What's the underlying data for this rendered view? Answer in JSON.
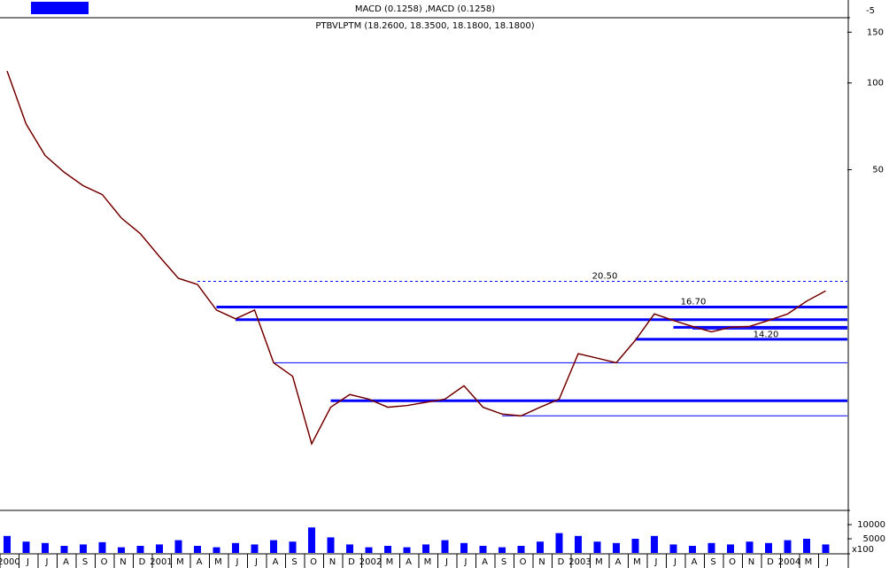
{
  "chart_data": {
    "type": "line",
    "title": "PTBVLPTM (18.2600, 18.3500, 18.1800, 18.1800)",
    "indicator_title": "MACD (0.1258) ,MACD (0.1258)",
    "indicator_ticks": [
      -5
    ],
    "categories": [
      "2000",
      "J",
      "J",
      "A",
      "S",
      "O",
      "N",
      "D",
      "2001",
      "M",
      "A",
      "M",
      "J",
      "J",
      "A",
      "S",
      "O",
      "N",
      "D",
      "2002",
      "M",
      "A",
      "M",
      "J",
      "J",
      "A",
      "S",
      "O",
      "N",
      "D",
      "2003",
      "M",
      "A",
      "M",
      "J",
      "J",
      "A",
      "S",
      "O",
      "N",
      "D",
      "2004",
      "M",
      "J"
    ],
    "log_scale": true,
    "ylim": [
      3.36,
      166
    ],
    "yticks": [
      50,
      100,
      150
    ],
    "series": [
      {
        "name": "PTBVLPTM",
        "color": "#000000",
        "values": [
          110,
          72,
          56,
          49,
          44,
          41,
          34,
          30,
          25,
          21,
          20,
          16.3,
          15.2,
          16.3,
          10.7,
          9.6,
          5.6,
          7.5,
          8.3,
          8.0,
          7.5,
          7.6,
          7.8,
          8.0,
          8.9,
          7.5,
          7.1,
          7.0,
          7.5,
          8.0,
          11.5,
          11.1,
          10.7,
          12.8,
          15.8,
          15.0,
          14.3,
          13.7,
          14.2,
          14.3,
          15.0,
          15.8,
          17.5,
          19.0
        ]
      }
    ],
    "levels": [
      {
        "value": 20.5,
        "label": "20.50"
      },
      {
        "value": 16.7,
        "label": "16.70"
      },
      {
        "value": 14.2,
        "label": "14.20"
      }
    ],
    "support_lines": [
      15.1,
      14.0,
      12.9,
      10.7,
      7.9,
      7.0
    ],
    "volume": {
      "color": "#0000ff",
      "ylim": [
        0,
        14400
      ],
      "yticks": [
        {
          "value": 10000,
          "label": "10000"
        },
        {
          "value": 5000,
          "label": "5000"
        }
      ],
      "unit_label": "x100",
      "values": [
        6000,
        4000,
        3500,
        2500,
        3000,
        3800,
        2000,
        2500,
        3000,
        4500,
        2500,
        2000,
        3500,
        3000,
        4500,
        4000,
        9000,
        5500,
        3000,
        2000,
        2500,
        2000,
        3000,
        4500,
        3500,
        2500,
        2000,
        2500,
        4000,
        7000,
        6000,
        4000,
        3500,
        5000,
        6000,
        3000,
        2500,
        3500,
        3000,
        4000,
        3500,
        4500,
        5000,
        3000
      ]
    }
  }
}
